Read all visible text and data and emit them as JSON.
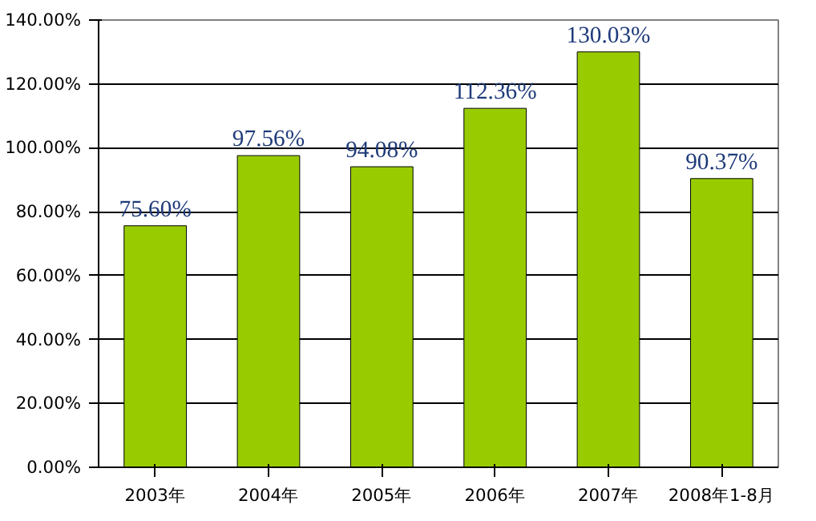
{
  "chart_data": {
    "type": "bar",
    "categories": [
      "2003年",
      "2004年",
      "2005年",
      "2006年",
      "2007年",
      "2008年1-8月"
    ],
    "values": [
      75.6,
      97.56,
      94.08,
      112.36,
      130.03,
      90.37
    ],
    "value_labels": [
      "75.60%",
      "97.56%",
      "94.08%",
      "112.36%",
      "130.03%",
      "90.37%"
    ],
    "color": "#99cc00",
    "ylim": [
      0,
      140
    ],
    "yticks": [
      {
        "value": 0,
        "label": "0.00%"
      },
      {
        "value": 20,
        "label": "20.00%"
      },
      {
        "value": 40,
        "label": "40.00%"
      },
      {
        "value": 60,
        "label": "60.00%"
      },
      {
        "value": 80,
        "label": "80.00%"
      },
      {
        "value": 100,
        "label": "100.00%"
      },
      {
        "value": 120,
        "label": "120.00%"
      },
      {
        "value": 140,
        "label": "140.00%"
      }
    ],
    "grid": "y"
  }
}
